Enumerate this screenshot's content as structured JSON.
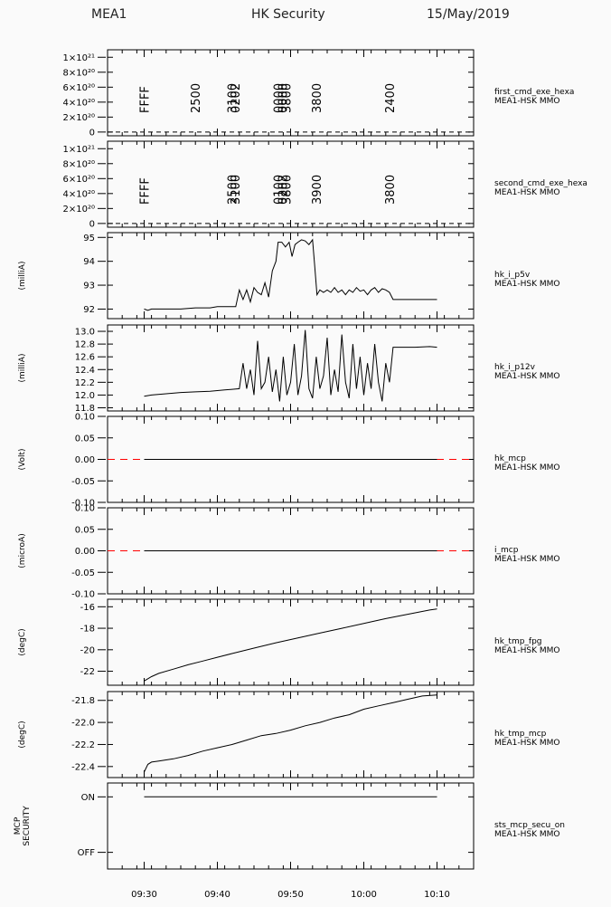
{
  "header": {
    "left": "MEA1",
    "center": "HK Security",
    "right": "15/May/2019"
  },
  "colors": {
    "line": "#000000",
    "zero_line": "#ff0000",
    "bg": "#fafafa"
  },
  "x_axis": {
    "min_minutes": 565,
    "max_minutes": 615,
    "ticks": [
      {
        "label": "09:30",
        "t": 570
      },
      {
        "label": "09:40",
        "t": 580
      },
      {
        "label": "09:50",
        "t": 590
      },
      {
        "label": "10:00",
        "t": 600
      },
      {
        "label": "10:10",
        "t": 610
      }
    ]
  },
  "chart_data": [
    {
      "name": "first_cmd_exe_hexa",
      "source": "MEA1-HSK MMO",
      "ylabel": "",
      "type": "annotation",
      "yticks": [
        {
          "v": 0,
          "label": "0"
        },
        {
          "v": 2,
          "label": "2×10²⁰"
        },
        {
          "v": 4,
          "label": "4×10²⁰"
        },
        {
          "v": 6,
          "label": "6×10²⁰"
        },
        {
          "v": 8,
          "label": "8×10²⁰"
        },
        {
          "v": 10,
          "label": "1×10²¹"
        }
      ],
      "ylim": [
        -0.5,
        11
      ],
      "dashed_baseline": 0,
      "annotations": [
        {
          "t": 570,
          "text": "FFFF"
        },
        {
          "t": 577,
          "text": "2500"
        },
        {
          "t": 582,
          "text": "3100"
        },
        {
          "t": 582.4,
          "text": "0202"
        },
        {
          "t": 588.3,
          "text": "0000"
        },
        {
          "t": 588.9,
          "text": "0000"
        },
        {
          "t": 589.4,
          "text": "3800"
        },
        {
          "t": 593.5,
          "text": "3800"
        },
        {
          "t": 603.5,
          "text": "2400"
        }
      ]
    },
    {
      "name": "second_cmd_exe_hexa",
      "source": "MEA1-HSK MMO",
      "ylabel": "",
      "type": "annotation",
      "yticks": [
        {
          "v": 0,
          "label": "0"
        },
        {
          "v": 2,
          "label": "2×10²⁰"
        },
        {
          "v": 4,
          "label": "4×10²⁰"
        },
        {
          "v": 6,
          "label": "6×10²⁰"
        },
        {
          "v": 8,
          "label": "8×10²⁰"
        },
        {
          "v": 10,
          "label": "1×10²¹"
        }
      ],
      "ylim": [
        -0.5,
        11
      ],
      "dashed_baseline": 0,
      "annotations": [
        {
          "t": 570,
          "text": "FFFF"
        },
        {
          "t": 582,
          "text": "2500"
        },
        {
          "t": 582.4,
          "text": "3100"
        },
        {
          "t": 588.3,
          "text": "0100"
        },
        {
          "t": 588.9,
          "text": "0202"
        },
        {
          "t": 589.4,
          "text": "3800"
        },
        {
          "t": 593.5,
          "text": "3900"
        },
        {
          "t": 603.5,
          "text": "3800"
        }
      ]
    },
    {
      "name": "hk_i_p5v",
      "source": "MEA1-HSK MMO",
      "ylabel": "(milliA)",
      "type": "line",
      "yticks": [
        {
          "v": 92,
          "label": "92"
        },
        {
          "v": 93,
          "label": "93"
        },
        {
          "v": 94,
          "label": "94"
        },
        {
          "v": 95,
          "label": "95"
        }
      ],
      "ylim": [
        91.6,
        95.2
      ],
      "x": [
        570,
        570.5,
        571,
        573,
        575,
        577,
        579,
        580,
        581,
        582,
        582.5,
        583,
        583.5,
        584,
        584.5,
        585,
        585.5,
        586,
        586.5,
        587,
        587.5,
        588,
        588.3,
        588.8,
        589.3,
        589.8,
        590.2,
        590.6,
        591,
        591.5,
        592,
        592.5,
        593,
        593.3,
        593.6,
        594,
        594.5,
        595,
        595.5,
        596,
        596.5,
        597,
        597.5,
        598,
        598.5,
        599,
        599.5,
        600,
        600.5,
        601,
        601.5,
        602,
        602.5,
        603,
        603.5,
        604,
        605,
        607,
        609,
        610
      ],
      "y": [
        92.0,
        91.95,
        92.0,
        92.0,
        92.0,
        92.05,
        92.05,
        92.1,
        92.1,
        92.1,
        92.1,
        92.8,
        92.4,
        92.8,
        92.3,
        92.9,
        92.7,
        92.6,
        93.1,
        92.5,
        93.6,
        94.0,
        94.8,
        94.8,
        94.6,
        94.8,
        94.2,
        94.7,
        94.8,
        94.9,
        94.85,
        94.7,
        94.9,
        93.8,
        92.6,
        92.8,
        92.7,
        92.8,
        92.7,
        92.9,
        92.7,
        92.8,
        92.6,
        92.8,
        92.7,
        92.9,
        92.75,
        92.8,
        92.6,
        92.8,
        92.9,
        92.7,
        92.85,
        92.8,
        92.7,
        92.4,
        92.4,
        92.4,
        92.4,
        92.4
      ]
    },
    {
      "name": "hk_i_p12v",
      "source": "MEA1-HSK MMO",
      "ylabel": "(milliA)",
      "type": "line",
      "yticks": [
        {
          "v": 11.8,
          "label": "11.8"
        },
        {
          "v": 12.0,
          "label": "12.0"
        },
        {
          "v": 12.2,
          "label": "12.2"
        },
        {
          "v": 12.4,
          "label": "12.4"
        },
        {
          "v": 12.6,
          "label": "12.6"
        },
        {
          "v": 12.8,
          "label": "12.8"
        },
        {
          "v": 13.0,
          "label": "13.0"
        }
      ],
      "ylim": [
        11.75,
        13.1
      ],
      "x": [
        570,
        571,
        573,
        575,
        577,
        579,
        581,
        583,
        583.5,
        584,
        584.5,
        585,
        585.5,
        586,
        586.5,
        587,
        587.5,
        588,
        588.5,
        589,
        589.5,
        590,
        590.5,
        591,
        591.5,
        592,
        592.5,
        593,
        593.5,
        594,
        594.5,
        595,
        595.5,
        596,
        596.5,
        597,
        597.5,
        598,
        598.5,
        599,
        599.5,
        600,
        600.5,
        601,
        601.5,
        602,
        602.5,
        603,
        603.5,
        604,
        605,
        607,
        609,
        610
      ],
      "y": [
        11.98,
        12.0,
        12.02,
        12.04,
        12.05,
        12.06,
        12.08,
        12.1,
        12.5,
        12.1,
        12.4,
        12.0,
        12.85,
        12.1,
        12.2,
        12.6,
        12.05,
        12.4,
        11.9,
        12.6,
        12.0,
        12.2,
        12.8,
        12.0,
        12.3,
        13.02,
        12.1,
        11.95,
        12.6,
        12.1,
        12.3,
        12.9,
        12.0,
        12.4,
        12.05,
        12.95,
        12.2,
        11.95,
        12.8,
        12.1,
        12.6,
        12.0,
        12.5,
        12.1,
        12.8,
        12.2,
        11.9,
        12.5,
        12.2,
        12.75,
        12.75,
        12.75,
        12.76,
        12.75
      ]
    },
    {
      "name": "hk_mcp",
      "source": "MEA1-HSK MMO",
      "ylabel": "(Volt)",
      "type": "flat",
      "yticks": [
        {
          "v": -0.1,
          "label": "-0.10"
        },
        {
          "v": -0.05,
          "label": "-0.05"
        },
        {
          "v": 0.0,
          "label": "0.00"
        },
        {
          "v": 0.05,
          "label": "0.05"
        },
        {
          "v": 0.1,
          "label": "0.10"
        }
      ],
      "ylim": [
        -0.1,
        0.1
      ],
      "x": [
        570,
        610
      ],
      "y": [
        0,
        0
      ]
    },
    {
      "name": "i_mcp",
      "source": "MEA1-HSK MMO",
      "ylabel": "(microA)",
      "type": "flat",
      "yticks": [
        {
          "v": -0.1,
          "label": "-0.10"
        },
        {
          "v": -0.05,
          "label": "-0.05"
        },
        {
          "v": 0.0,
          "label": "0.00"
        },
        {
          "v": 0.05,
          "label": "0.05"
        },
        {
          "v": 0.1,
          "label": "0.10"
        }
      ],
      "ylim": [
        -0.1,
        0.1
      ],
      "x": [
        570,
        610
      ],
      "y": [
        0,
        0
      ]
    },
    {
      "name": "hk_tmp_fpg",
      "source": "MEA1-HSK MMO",
      "ylabel": "(degC)",
      "type": "line",
      "yticks": [
        {
          "v": -22,
          "label": "-22"
        },
        {
          "v": -20,
          "label": "-20"
        },
        {
          "v": -18,
          "label": "-18"
        },
        {
          "v": -16,
          "label": "-16"
        }
      ],
      "ylim": [
        -23.3,
        -15.3
      ],
      "x": [
        570,
        571,
        572,
        574,
        576,
        578,
        580,
        582,
        585,
        588,
        591,
        594,
        597,
        600,
        603,
        606,
        609,
        610
      ],
      "y": [
        -22.9,
        -22.5,
        -22.2,
        -21.8,
        -21.4,
        -21.05,
        -20.7,
        -20.35,
        -19.85,
        -19.35,
        -18.9,
        -18.45,
        -18.0,
        -17.55,
        -17.1,
        -16.7,
        -16.3,
        -16.2
      ]
    },
    {
      "name": "hk_tmp_mcp",
      "source": "MEA1-HSK MMO",
      "ylabel": "(degC)",
      "type": "line",
      "yticks": [
        {
          "v": -22.4,
          "label": "-22.4"
        },
        {
          "v": -22.2,
          "label": "-22.2"
        },
        {
          "v": -22.0,
          "label": "-22.0"
        },
        {
          "v": -21.8,
          "label": "-21.8"
        }
      ],
      "ylim": [
        -22.5,
        -21.72
      ],
      "x": [
        570,
        570.5,
        571,
        572,
        574,
        576,
        578,
        580,
        582,
        584,
        586,
        588,
        590,
        592,
        594,
        596,
        598,
        600,
        602,
        604,
        606,
        608,
        610
      ],
      "y": [
        -22.45,
        -22.38,
        -22.36,
        -22.35,
        -22.33,
        -22.3,
        -22.26,
        -22.23,
        -22.2,
        -22.16,
        -22.12,
        -22.1,
        -22.07,
        -22.03,
        -22.0,
        -21.96,
        -21.93,
        -21.88,
        -21.85,
        -21.82,
        -21.79,
        -21.76,
        -21.75
      ]
    },
    {
      "name": "sts_mcp_secu_on",
      "source": "MEA1-HSK MMO",
      "ylabel": "MCP\nSECURITY",
      "type": "step",
      "yticks": [
        {
          "v": 0,
          "label": "OFF"
        },
        {
          "v": 1,
          "label": "ON"
        }
      ],
      "ylim": [
        -0.3,
        1.25
      ],
      "x": [
        570,
        610
      ],
      "y": [
        1,
        1
      ]
    }
  ]
}
